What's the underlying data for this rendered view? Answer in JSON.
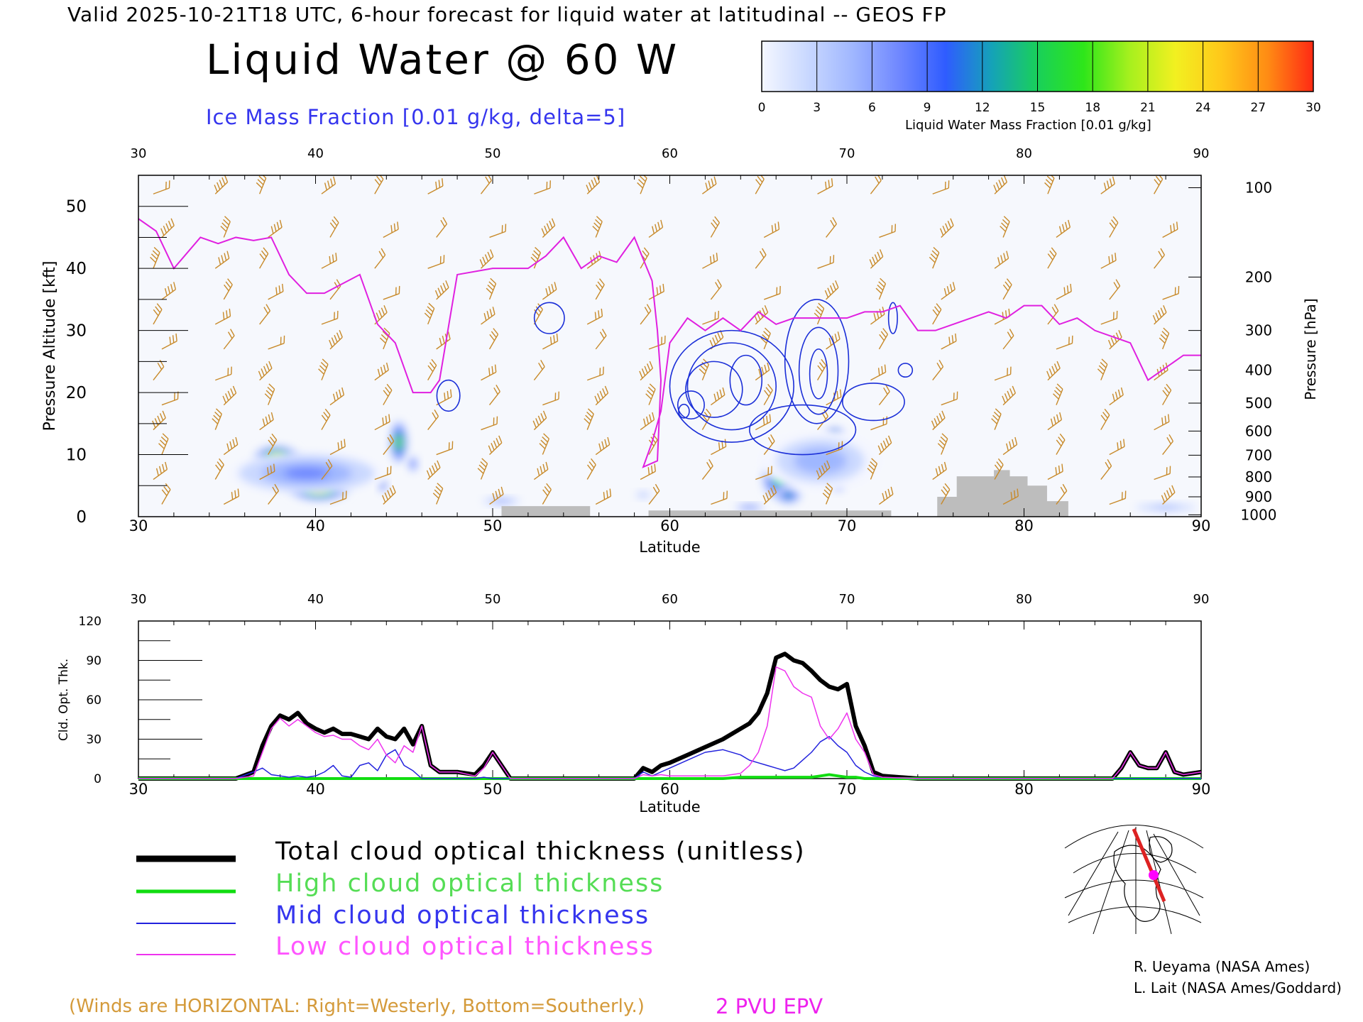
{
  "header": {
    "line": "Valid 2025-10-21T18 UTC, 6-hour forecast for liquid water at latitudinal -- GEOS FP",
    "title": "Liquid Water @ 60 W",
    "subtitle": "Ice Mass Fraction [0.01 g/kg, delta=5]"
  },
  "colorbar": {
    "label": "Liquid Water Mass Fraction [0.01 g/kg]",
    "ticks": [
      "0",
      "3",
      "6",
      "9",
      "12",
      "15",
      "18",
      "21",
      "24",
      "27",
      "30"
    ],
    "colors": [
      "#f4f7ff",
      "#c9d8ff",
      "#9fb6ff",
      "#6f87ff",
      "#2f5cff",
      "#15a2b8",
      "#19d05a",
      "#2ee61a",
      "#a6f01e",
      "#f2f020",
      "#ffc81a",
      "#ff8c14",
      "#ff2a14"
    ]
  },
  "colors": {
    "total": "#000000",
    "high": "#11dd11",
    "mid": "#2222dd",
    "low": "#ee33ee",
    "wind": "#c88a2a",
    "ice": "#1b2fd8",
    "epv": "#e020e0",
    "terrain": "#bdbdbd"
  },
  "legend": {
    "total": "Total cloud optical thickness (unitless)",
    "high": "High cloud optical thickness",
    "mid": "Mid cloud optical thickness",
    "low": "Low cloud optical thickness"
  },
  "notes": {
    "winds": "(Winds are HORIZONTAL: Right=Westerly, Bottom=Southerly.)",
    "pvu": "2 PVU EPV"
  },
  "credits": {
    "line1": "R. Ueyama (NASA Ames)",
    "line2": "L. Lait (NASA Ames/Goddard)"
  },
  "chart_data": [
    {
      "type": "heatmap",
      "xlabel": "Latitude",
      "ylabel": "Pressure Altitude [kft]",
      "y2label": "Pressure [hPa]",
      "xlim": [
        30,
        90
      ],
      "ylim": [
        0,
        55
      ],
      "x_ticks": [
        30,
        40,
        50,
        60,
        70,
        80,
        90
      ],
      "y_ticks": [
        0,
        10,
        20,
        30,
        40,
        50
      ],
      "pressure_ticks": [
        {
          "label": "100",
          "kft": 53
        },
        {
          "label": "200",
          "kft": 38.6
        },
        {
          "label": "300",
          "kft": 30
        },
        {
          "label": "400",
          "kft": 23.6
        },
        {
          "label": "500",
          "kft": 18.3
        },
        {
          "label": "600",
          "kft": 13.8
        },
        {
          "label": "700",
          "kft": 9.9
        },
        {
          "label": "800",
          "kft": 6.4
        },
        {
          "label": "900",
          "kft": 3.2
        },
        {
          "label": "1000",
          "kft": 0.3
        }
      ],
      "epv_2pvu": {
        "lat": [
          30,
          31,
          32,
          33.5,
          34.5,
          35.5,
          36.5,
          37.5,
          38.5,
          39.5,
          40.5,
          41.5,
          42.5,
          43.5,
          44.5,
          45.5,
          46.5,
          47,
          48,
          50,
          52,
          53,
          54,
          55,
          56,
          57,
          58,
          59,
          59.3,
          59.5,
          59.3,
          58.5,
          59,
          59.5,
          60,
          61,
          62,
          63,
          64,
          65,
          66,
          67,
          68,
          69,
          70,
          71,
          72,
          73,
          74,
          75,
          76,
          77,
          78,
          79,
          80,
          81,
          82,
          83,
          84,
          85,
          86,
          87,
          88,
          89,
          90
        ],
        "kft": [
          48,
          46,
          40,
          45,
          44,
          45,
          44.5,
          45,
          39,
          36,
          36,
          37.5,
          39,
          31,
          28,
          20,
          20,
          22,
          39,
          40,
          40,
          42,
          45,
          40,
          42,
          41,
          45,
          38,
          30,
          22,
          9,
          8,
          12,
          17,
          28,
          32,
          30,
          32,
          30,
          33,
          31,
          32,
          32,
          32,
          32,
          33,
          33,
          34,
          30,
          30,
          31,
          32,
          33,
          32,
          34,
          34,
          31,
          32,
          30,
          29,
          28,
          22,
          24,
          26,
          26
        ]
      },
      "ice_contours": [
        {
          "lat": 60.8,
          "kft": 17,
          "width_deg": 0.6,
          "height_kft": 2.2
        },
        {
          "lat": 61.2,
          "kft": 18,
          "width_deg": 1.5,
          "height_kft": 4.5
        },
        {
          "lat": 62.5,
          "kft": 20.5,
          "width_deg": 3.2,
          "height_kft": 9
        },
        {
          "lat": 63.5,
          "kft": 21,
          "width_deg": 5,
          "height_kft": 14
        },
        {
          "lat": 63.5,
          "kft": 21,
          "width_deg": 7,
          "height_kft": 18
        },
        {
          "lat": 64.3,
          "kft": 22,
          "width_deg": 1.8,
          "height_kft": 8
        },
        {
          "lat": 68.4,
          "kft": 23,
          "width_deg": 1,
          "height_kft": 8
        },
        {
          "lat": 68.4,
          "kft": 23.5,
          "width_deg": 2.2,
          "height_kft": 14
        },
        {
          "lat": 68.3,
          "kft": 25,
          "width_deg": 3.6,
          "height_kft": 20
        },
        {
          "lat": 71.5,
          "kft": 18.5,
          "width_deg": 3.5,
          "height_kft": 6
        },
        {
          "lat": 67.5,
          "kft": 14,
          "width_deg": 6,
          "height_kft": 8
        },
        {
          "lat": 47.5,
          "kft": 19.5,
          "width_deg": 1.3,
          "height_kft": 5
        },
        {
          "lat": 53.2,
          "kft": 32,
          "width_deg": 1.7,
          "height_kft": 5
        },
        {
          "lat": 72.6,
          "kft": 32,
          "width_deg": 0.5,
          "height_kft": 5
        },
        {
          "lat": 73.3,
          "kft": 23.6,
          "width_deg": 0.8,
          "height_kft": 2.2
        }
      ],
      "liquid_blobs": [
        {
          "lat": 37.8,
          "kft": 9.5,
          "max": 24,
          "width_deg": 2.6,
          "height_kft": 4
        },
        {
          "lat": 40.2,
          "kft": 4.5,
          "max": 26,
          "width_deg": 3.5,
          "height_kft": 4
        },
        {
          "lat": 44.7,
          "kft": 12,
          "max": 22,
          "width_deg": 1,
          "height_kft": 7
        },
        {
          "lat": 45.5,
          "kft": 8.5,
          "max": 12,
          "width_deg": 0.6,
          "height_kft": 3
        },
        {
          "lat": 43.8,
          "kft": 5,
          "max": 13,
          "width_deg": 0.5,
          "height_kft": 2.5
        },
        {
          "lat": 39.5,
          "kft": 7,
          "max": 8,
          "width_deg": 9,
          "height_kft": 7
        },
        {
          "lat": 66.2,
          "kft": 6,
          "max": 20,
          "width_deg": 2,
          "height_kft": 6
        },
        {
          "lat": 66.7,
          "kft": 3.5,
          "max": 17,
          "width_deg": 1.5,
          "height_kft": 3
        },
        {
          "lat": 69.3,
          "kft": 13.5,
          "max": 15,
          "width_deg": 1.3,
          "height_kft": 2
        },
        {
          "lat": 69.5,
          "kft": 5,
          "max": 12,
          "width_deg": 0.8,
          "height_kft": 2
        },
        {
          "lat": 68.5,
          "kft": 9,
          "max": 6,
          "width_deg": 7,
          "height_kft": 10
        },
        {
          "lat": 64.5,
          "kft": 1.5,
          "max": 13,
          "width_deg": 2,
          "height_kft": 1
        },
        {
          "lat": 50.5,
          "kft": 2.5,
          "max": 9,
          "width_deg": 2.5,
          "height_kft": 1.2
        },
        {
          "lat": 88,
          "kft": 1.5,
          "max": 7,
          "width_deg": 4,
          "height_kft": 1.3
        },
        {
          "lat": 58.5,
          "kft": 3.5,
          "max": 6,
          "width_deg": 1.2,
          "height_kft": 1.2
        }
      ],
      "terrain": {
        "lat": [
          30,
          50.5,
          50.5,
          55.5,
          55.5,
          58.8,
          58.8,
          72.5,
          72.5,
          75.1,
          75.1,
          76.2,
          76.2,
          78.3,
          78.3,
          79.2,
          79.2,
          80.2,
          80.2,
          81.3,
          81.3,
          82.5,
          82.5,
          90
        ],
        "kft": [
          0,
          0,
          1.7,
          1.7,
          0,
          0,
          1,
          1,
          0,
          0,
          3.2,
          3.2,
          6.5,
          6.5,
          7.5,
          7.5,
          6.5,
          6.5,
          5,
          5,
          2.5,
          2.5,
          0,
          0
        ]
      },
      "wind_barb_rows_kft": [
        52,
        45,
        40,
        35,
        31,
        27,
        22,
        18,
        14,
        10,
        6,
        2
      ],
      "wind_barb_cols_lat": [
        31,
        34.5,
        37,
        40.5,
        43.5,
        46.5,
        49.5,
        52.5,
        55.5,
        58.5,
        62,
        65,
        68.5,
        71.5,
        75,
        78.5,
        81.5,
        84.5,
        87.5
      ]
    },
    {
      "type": "line",
      "xlabel": "Latitude",
      "ylabel": "Cld. Opt. Thk.",
      "xlim": [
        30,
        90
      ],
      "ylim": [
        0,
        120
      ],
      "x_ticks": [
        30,
        40,
        50,
        60,
        70,
        80,
        90
      ],
      "y_ticks": [
        0,
        30,
        60,
        90,
        120
      ],
      "x": [
        30,
        32,
        34,
        35.5,
        36.5,
        37,
        37.5,
        38,
        38.5,
        39,
        39.5,
        40,
        40.5,
        41,
        41.5,
        42,
        42.5,
        43,
        43.5,
        44,
        44.5,
        45,
        45.5,
        46,
        46.5,
        47,
        48,
        49,
        49.5,
        50,
        50.5,
        51,
        52,
        55,
        58,
        58.5,
        59,
        59.5,
        60,
        61,
        62,
        63,
        64,
        64.5,
        65,
        65.5,
        66,
        66.5,
        67,
        67.5,
        68,
        68.5,
        69,
        69.5,
        70,
        70.5,
        71,
        71.5,
        72,
        74,
        80,
        85,
        85.5,
        86,
        86.5,
        87,
        87.5,
        88,
        88.5,
        89,
        90
      ],
      "series": [
        {
          "name": "Total cloud optical thickness (unitless)",
          "key": "total",
          "values": [
            0,
            0,
            0,
            0,
            5,
            25,
            40,
            48,
            45,
            50,
            42,
            38,
            35,
            38,
            34,
            34,
            32,
            30,
            38,
            32,
            30,
            38,
            26,
            40,
            10,
            5,
            5,
            3,
            10,
            20,
            10,
            0,
            0,
            0,
            0,
            8,
            5,
            10,
            12,
            18,
            24,
            30,
            38,
            42,
            50,
            65,
            92,
            95,
            90,
            88,
            82,
            75,
            70,
            68,
            72,
            40,
            25,
            5,
            2,
            0,
            0,
            0,
            8,
            20,
            10,
            8,
            8,
            20,
            5,
            3,
            5
          ]
        },
        {
          "name": "High cloud optical thickness",
          "key": "high",
          "values": [
            0,
            0,
            0,
            0,
            0,
            0,
            0,
            0,
            0,
            0,
            0,
            0,
            0,
            0,
            0,
            0,
            0,
            0,
            0,
            0,
            0,
            0,
            0,
            0,
            0,
            0,
            0,
            0,
            0,
            0,
            0,
            0,
            0,
            0,
            0,
            0,
            0,
            0,
            0,
            0,
            0,
            0,
            1,
            1,
            1,
            1,
            1,
            1,
            1,
            1,
            1,
            2,
            3,
            2,
            1,
            1,
            0,
            0,
            0,
            0,
            0,
            0,
            0,
            0,
            0,
            0,
            0,
            0,
            0,
            0,
            0
          ]
        },
        {
          "name": "Mid cloud optical thickness",
          "key": "mid",
          "values": [
            0,
            0,
            0,
            0,
            5,
            8,
            3,
            2,
            1,
            2,
            1,
            2,
            5,
            10,
            2,
            1,
            10,
            12,
            6,
            18,
            22,
            10,
            6,
            0,
            0,
            0,
            0,
            0,
            1,
            0,
            0,
            0,
            0,
            0,
            0,
            5,
            2,
            5,
            8,
            14,
            20,
            22,
            18,
            14,
            12,
            10,
            8,
            6,
            8,
            14,
            20,
            28,
            32,
            25,
            20,
            10,
            5,
            2,
            1,
            0,
            0,
            0,
            0,
            0,
            0,
            0,
            0,
            0,
            0,
            0,
            0
          ]
        },
        {
          "name": "Low cloud optical thickness",
          "key": "low",
          "values": [
            0,
            0,
            0,
            0,
            2,
            20,
            38,
            46,
            40,
            45,
            40,
            35,
            32,
            33,
            30,
            30,
            25,
            22,
            30,
            18,
            12,
            25,
            20,
            40,
            10,
            5,
            5,
            2,
            8,
            20,
            10,
            0,
            0,
            0,
            0,
            3,
            2,
            3,
            2,
            2,
            2,
            2,
            4,
            10,
            20,
            40,
            85,
            82,
            70,
            65,
            62,
            40,
            30,
            38,
            50,
            30,
            20,
            3,
            1,
            0,
            0,
            0,
            8,
            20,
            10,
            8,
            8,
            20,
            5,
            3,
            5
          ]
        }
      ]
    }
  ]
}
